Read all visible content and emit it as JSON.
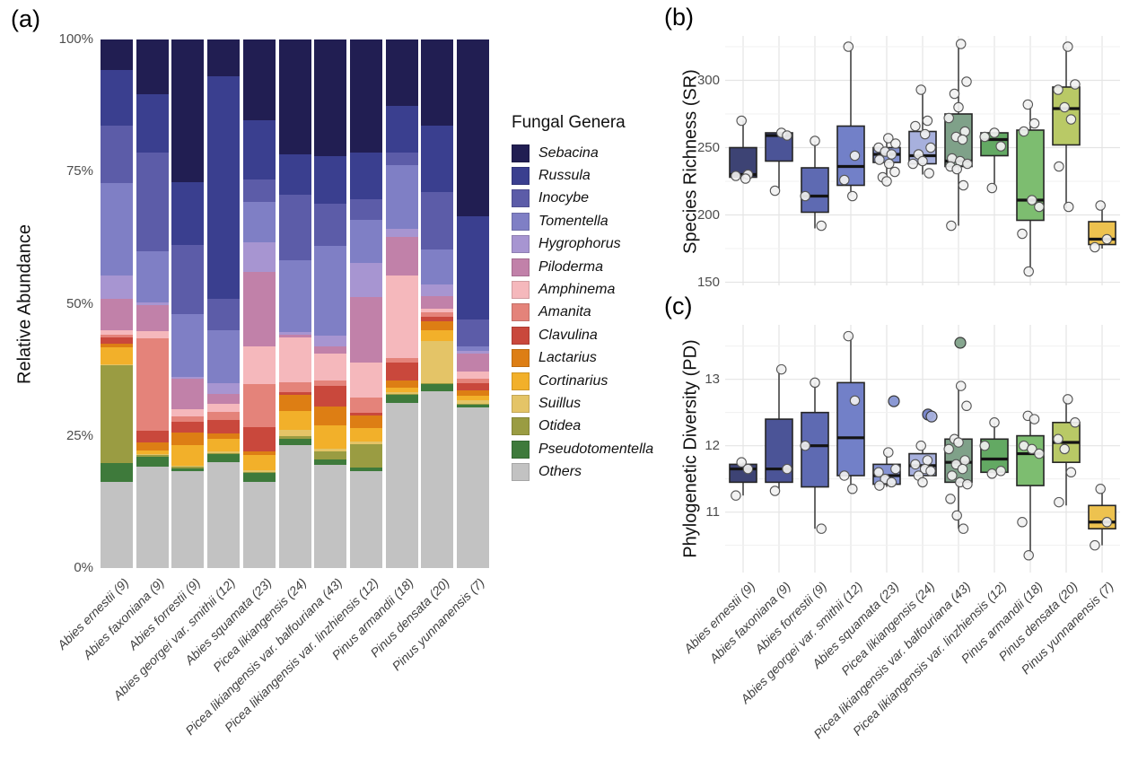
{
  "panels": {
    "a": {
      "label": "(a)",
      "ylabel": "Relative Abundance"
    },
    "b": {
      "label": "(b)",
      "ylabel": "Species Richness (SR)"
    },
    "c": {
      "label": "(c)",
      "ylabel": "Phylogenetic Diversity (PD)"
    }
  },
  "legend": {
    "title": "Fungal Genera"
  },
  "species_labels": [
    "Abies ernestii (9)",
    "Abies faxoniana (9)",
    "Abies forrestii (9)",
    "Abies georgei var. smithii (12)",
    "Abies squamata (23)",
    "Picea likiangensis (24)",
    "Picea likiangensis var. balfouriana (43)",
    "Picea likiangensis var. linzhiensis (12)",
    "Pinus armandii (18)",
    "Pinus densata (20)",
    "Pinus yunnanensis (7)"
  ],
  "species_colors": [
    "#3d4374",
    "#4b5497",
    "#5e6ab2",
    "#7280c8",
    "#8593d2",
    "#a7b0dd",
    "#7fa189",
    "#63a963",
    "#7dbd70",
    "#b9c966",
    "#edc24f"
  ],
  "chart_data": [
    {
      "type": "bar",
      "stacked": true,
      "panel": "a",
      "title": "",
      "ylabel": "Relative Abundance",
      "ylim": [
        0,
        100
      ],
      "yticks": [
        "0%",
        "25%",
        "50%",
        "75%",
        "100%"
      ],
      "grid": false,
      "legend_title": "Fungal Genera",
      "legend_position": "right",
      "genera": [
        "Sebacina",
        "Russula",
        "Inocybe",
        "Tomentella",
        "Hygrophorus",
        "Piloderma",
        "Amphinema",
        "Amanita",
        "Clavulina",
        "Lactarius",
        "Cortinarius",
        "Suillus",
        "Otidea",
        "Pseudotomentella",
        "Others"
      ],
      "genera_colors": [
        "#211e52",
        "#3a3f8f",
        "#5c5ca8",
        "#7f7fc5",
        "#a795d1",
        "#c181a9",
        "#f5b8bc",
        "#e4837a",
        "#c9483c",
        "#dd7e14",
        "#f2b02a",
        "#e4c467",
        "#9a9c42",
        "#3e7a3b",
        "#c2c2c2"
      ],
      "categories": [
        "Abies ernestii (9)",
        "Abies faxoniana (9)",
        "Abies forrestii (9)",
        "Abies georgei var. smithii (12)",
        "Abies squamata (23)",
        "Picea likiangensis (24)",
        "Picea likiangensis var. balfouriana (43)",
        "Picea likiangensis var. linzhiensis (12)",
        "Pinus armandii (18)",
        "Pinus densata (20)",
        "Pinus yunnanensis (7)"
      ],
      "series": [
        {
          "name": "Sebacina",
          "values": [
            5.7,
            10.4,
            27.0,
            7.0,
            15.2,
            21.7,
            22.0,
            21.4,
            12.6,
            16.3,
            33.5
          ]
        },
        {
          "name": "Russula",
          "values": [
            10.6,
            11.0,
            11.9,
            42.0,
            11.3,
            7.6,
            9.0,
            8.8,
            8.8,
            12.5,
            19.5
          ]
        },
        {
          "name": "Inocybe",
          "values": [
            10.8,
            18.7,
            13.0,
            6.0,
            4.2,
            12.4,
            8.0,
            4.0,
            2.3,
            11.0,
            5.0
          ]
        },
        {
          "name": "Tomentella",
          "values": [
            17.5,
            9.6,
            11.9,
            10.0,
            7.6,
            13.6,
            17.0,
            8.0,
            12.2,
            6.5,
            1.0
          ]
        },
        {
          "name": "Hygrophorus",
          "values": [
            4.5,
            0.6,
            0.4,
            2.0,
            5.7,
            0.5,
            2.0,
            6.5,
            1.4,
            2.3,
            0.4
          ]
        },
        {
          "name": "Piloderma",
          "values": [
            5.9,
            4.8,
            5.7,
            2.0,
            14.1,
            0.5,
            1.5,
            12.5,
            7.4,
            2.3,
            3.4
          ]
        },
        {
          "name": "Amphinema",
          "values": [
            0.8,
            1.4,
            1.4,
            1.5,
            7.1,
            8.5,
            5.0,
            6.5,
            15.6,
            0.8,
            1.4
          ]
        },
        {
          "name": "Amanita",
          "values": [
            0.5,
            17.5,
            1.1,
            1.5,
            8.2,
            2.0,
            1.0,
            3.0,
            0.8,
            0.8,
            0.8
          ]
        },
        {
          "name": "Clavulina",
          "values": [
            1.2,
            2.3,
            2.0,
            2.5,
            4.5,
            0.5,
            4.0,
            0.5,
            3.4,
            0.8,
            1.4
          ]
        },
        {
          "name": "Lactarius",
          "values": [
            0.7,
            1.4,
            2.3,
            1.0,
            0.8,
            3.0,
            3.5,
            2.3,
            1.4,
            1.7,
            1.1
          ]
        },
        {
          "name": "Cortinarius",
          "values": [
            3.3,
            0.8,
            4.0,
            2.5,
            2.8,
            3.5,
            4.5,
            2.5,
            0.8,
            2.0,
            0.8
          ]
        },
        {
          "name": "Suillus",
          "values": [
            0.2,
            0.2,
            0.2,
            0.3,
            0.3,
            1.2,
            0.5,
            0.5,
            0.3,
            8.0,
            0.6
          ]
        },
        {
          "name": "Otidea",
          "values": [
            18.4,
            0.2,
            0.2,
            0.2,
            0.2,
            0.5,
            1.5,
            4.5,
            0.3,
            0.2,
            0.2
          ]
        },
        {
          "name": "Pseudotomentella",
          "values": [
            3.7,
            2.0,
            0.6,
            1.5,
            1.7,
            1.2,
            1.0,
            0.7,
            1.4,
            1.3,
            0.6
          ]
        },
        {
          "name": "Others",
          "values": [
            16.2,
            19.1,
            18.3,
            20.0,
            16.3,
            23.3,
            19.5,
            18.3,
            31.3,
            33.5,
            30.3
          ]
        }
      ]
    },
    {
      "type": "box",
      "panel": "b",
      "title": "",
      "ylabel": "Species Richness (SR)",
      "ylim": [
        148,
        333
      ],
      "yticks": [
        150,
        200,
        250,
        300
      ],
      "minor_ticks": [
        175,
        225,
        275,
        325
      ],
      "grid": true,
      "categories": [
        "Abies ernestii (9)",
        "Abies faxoniana (9)",
        "Abies forrestii (9)",
        "Abies georgei var. smithii (12)",
        "Abies squamata (23)",
        "Picea likiangensis (24)",
        "Picea likiangensis var. balfouriana (43)",
        "Picea likiangensis var. linzhiensis (12)",
        "Pinus armandii (18)",
        "Pinus densata (20)",
        "Pinus yunnanensis (7)"
      ],
      "boxes": [
        {
          "q1": 228,
          "median": 230,
          "q3": 250,
          "whisker_low": 226,
          "whisker_high": 270,
          "points": [
            270,
            230,
            229,
            227
          ]
        },
        {
          "q1": 240,
          "median": 259,
          "q3": 261,
          "whisker_low": 218,
          "whisker_high": 261,
          "points": [
            261,
            259,
            218
          ]
        },
        {
          "q1": 202,
          "median": 214,
          "q3": 235,
          "whisker_low": 190,
          "whisker_high": 255,
          "points": [
            255,
            214,
            192
          ]
        },
        {
          "q1": 222,
          "median": 236,
          "q3": 266,
          "whisker_low": 214,
          "whisker_high": 325,
          "points": [
            325,
            244,
            226,
            214
          ]
        },
        {
          "q1": 239,
          "median": 245,
          "q3": 250,
          "whisker_low": 225,
          "whisker_high": 257,
          "points": [
            257,
            253,
            250,
            247,
            245,
            241,
            238,
            232,
            228,
            225
          ]
        },
        {
          "q1": 238,
          "median": 244,
          "q3": 262,
          "whisker_low": 230,
          "whisker_high": 293,
          "points": [
            293,
            270,
            266,
            260,
            250,
            245,
            240,
            238,
            231
          ]
        },
        {
          "q1": 236,
          "median": 240,
          "q3": 275,
          "whisker_low": 192,
          "whisker_high": 327,
          "points": [
            327,
            299,
            290,
            280,
            272,
            262,
            258,
            256,
            242,
            240,
            238,
            236,
            234,
            222,
            192
          ]
        },
        {
          "q1": 244,
          "median": 256,
          "q3": 261,
          "whisker_low": 220,
          "whisker_high": 261,
          "points": [
            261,
            258,
            251,
            220
          ]
        },
        {
          "q1": 196,
          "median": 211,
          "q3": 263,
          "whisker_low": 158,
          "whisker_high": 282,
          "points": [
            282,
            268,
            262,
            211,
            206,
            186,
            158
          ]
        },
        {
          "q1": 252,
          "median": 279,
          "q3": 295,
          "whisker_low": 205,
          "whisker_high": 325,
          "points": [
            325,
            297,
            293,
            280,
            271,
            236,
            206
          ]
        },
        {
          "q1": 178,
          "median": 182,
          "q3": 195,
          "whisker_low": 175,
          "whisker_high": 207,
          "points": [
            207,
            182,
            176
          ]
        }
      ]
    },
    {
      "type": "box",
      "panel": "c",
      "title": "",
      "ylabel": "Phylogenetic Diversity (PD)",
      "ylim": [
        10.09,
        13.82
      ],
      "yticks": [
        11,
        12,
        13
      ],
      "minor_ticks": [
        10.5,
        11.5,
        12.5,
        13.5
      ],
      "grid": true,
      "categories": [
        "Abies ernestii (9)",
        "Abies faxoniana (9)",
        "Abies forrestii (9)",
        "Abies georgei var. smithii (12)",
        "Abies squamata (23)",
        "Picea likiangensis (24)",
        "Picea likiangensis var. balfouriana (43)",
        "Picea likiangensis var. linzhiensis (12)",
        "Pinus armandii (18)",
        "Pinus densata (20)",
        "Pinus yunnanensis (7)"
      ],
      "boxes": [
        {
          "q1": 11.45,
          "median": 11.65,
          "q3": 11.72,
          "whisker_low": 11.25,
          "whisker_high": 11.75,
          "points": [
            11.75,
            11.65,
            11.25
          ]
        },
        {
          "q1": 11.45,
          "median": 11.65,
          "q3": 12.4,
          "whisker_low": 11.3,
          "whisker_high": 13.15,
          "points": [
            13.15,
            11.65,
            11.32
          ]
        },
        {
          "q1": 11.38,
          "median": 12.0,
          "q3": 12.5,
          "whisker_low": 10.75,
          "whisker_high": 12.95,
          "points": [
            12.95,
            12.0,
            10.75
          ]
        },
        {
          "q1": 11.55,
          "median": 12.12,
          "q3": 12.95,
          "whisker_low": 11.35,
          "whisker_high": 13.65,
          "points": [
            13.65,
            12.68,
            11.55,
            11.35
          ]
        },
        {
          "q1": 11.42,
          "median": 11.55,
          "q3": 11.72,
          "whisker_low": 11.38,
          "whisker_high": 11.9,
          "points": [
            11.9,
            11.65,
            11.6,
            11.5,
            11.45,
            11.4
          ],
          "colored_points": [
            {
              "value": 12.67,
              "color": "#8593d2",
              "dx": 8
            }
          ]
        },
        {
          "q1": 11.55,
          "median": 11.7,
          "q3": 11.88,
          "whisker_low": 11.45,
          "whisker_high": 12.02,
          "points": [
            12.0,
            11.78,
            11.72,
            11.65,
            11.62,
            11.55,
            11.45
          ],
          "colored_points": [
            {
              "value": 12.47,
              "color": "#7280c8",
              "dx": 6
            },
            {
              "value": 12.44,
              "color": "#a7b0dd",
              "dx": 10
            }
          ]
        },
        {
          "q1": 11.45,
          "median": 11.75,
          "q3": 12.1,
          "whisker_low": 10.75,
          "whisker_high": 12.9,
          "points": [
            12.9,
            12.6,
            12.1,
            12.05,
            11.95,
            11.78,
            11.72,
            11.65,
            11.55,
            11.45,
            11.42,
            11.2,
            10.95,
            10.75
          ],
          "colored_points": [
            {
              "value": 13.55,
              "color": "#7fa189",
              "dx": 2
            }
          ]
        },
        {
          "q1": 11.6,
          "median": 11.8,
          "q3": 12.1,
          "whisker_low": 11.58,
          "whisker_high": 12.35,
          "points": [
            12.35,
            12.0,
            11.62,
            11.58
          ]
        },
        {
          "q1": 11.4,
          "median": 11.88,
          "q3": 12.15,
          "whisker_low": 10.35,
          "whisker_high": 12.45,
          "points": [
            12.45,
            12.4,
            12.0,
            11.95,
            11.88,
            10.85,
            10.35
          ]
        },
        {
          "q1": 11.75,
          "median": 12.05,
          "q3": 12.35,
          "whisker_low": 11.1,
          "whisker_high": 12.7,
          "points": [
            12.7,
            12.35,
            12.1,
            11.95,
            11.6,
            11.15
          ]
        },
        {
          "q1": 10.75,
          "median": 10.85,
          "q3": 11.1,
          "whisker_low": 10.5,
          "whisker_high": 11.35,
          "points": [
            11.35,
            10.85,
            10.5
          ]
        }
      ]
    }
  ]
}
